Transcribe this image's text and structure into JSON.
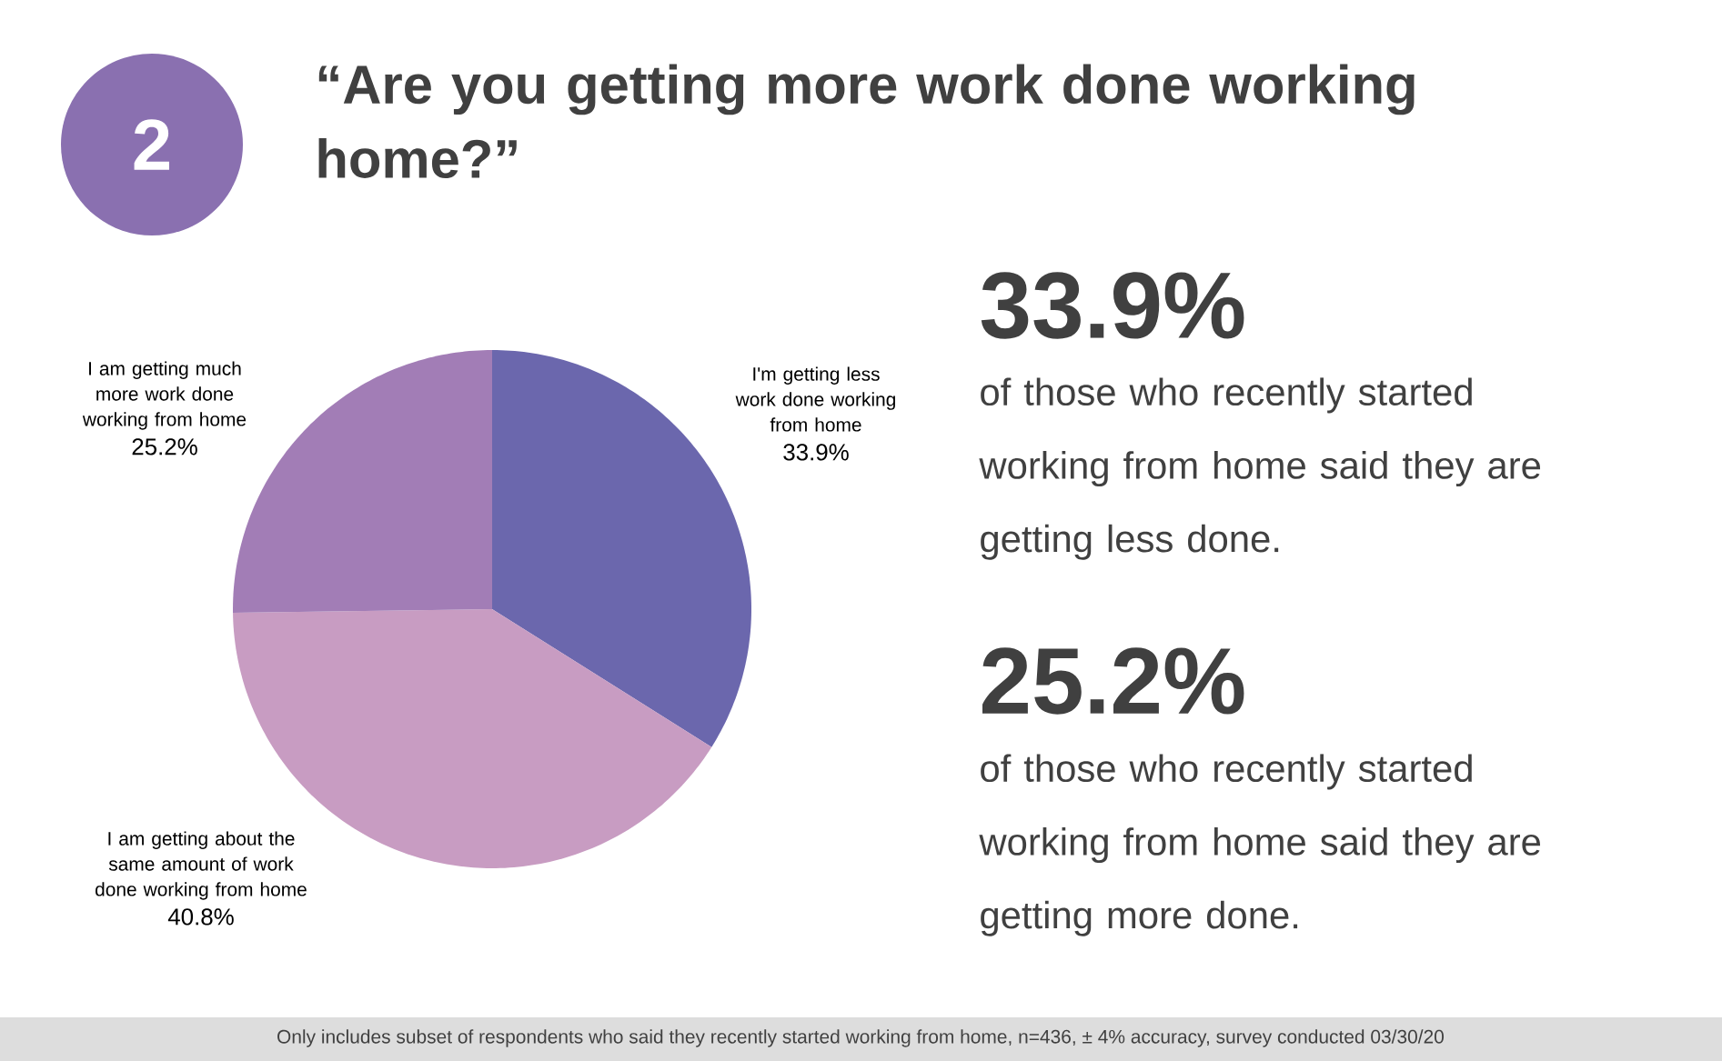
{
  "chart_data": {
    "type": "pie",
    "title": "“Are you getting more work done working home?”",
    "categories": [
      "I'm getting less work done working from home",
      "I am getting about the same amount of work done working from home",
      "I am getting much more work done working from home"
    ],
    "values": [
      33.9,
      40.8,
      25.2
    ],
    "colors": [
      "#6b67ad",
      "#c89cc2",
      "#a27db6"
    ],
    "value_labels": [
      "33.9%",
      "40.8%",
      "25.2%"
    ],
    "annotations": [
      "2",
      "33.9%",
      "of those who recently started working from home said they are getting less done.",
      "25.2%",
      "of those who recently started working from home said they are getting more done.",
      "Only includes subset of respondents who said they recently started working from home, n=436, ± 4% accuracy, survey conducted 03/30/20"
    ]
  }
}
